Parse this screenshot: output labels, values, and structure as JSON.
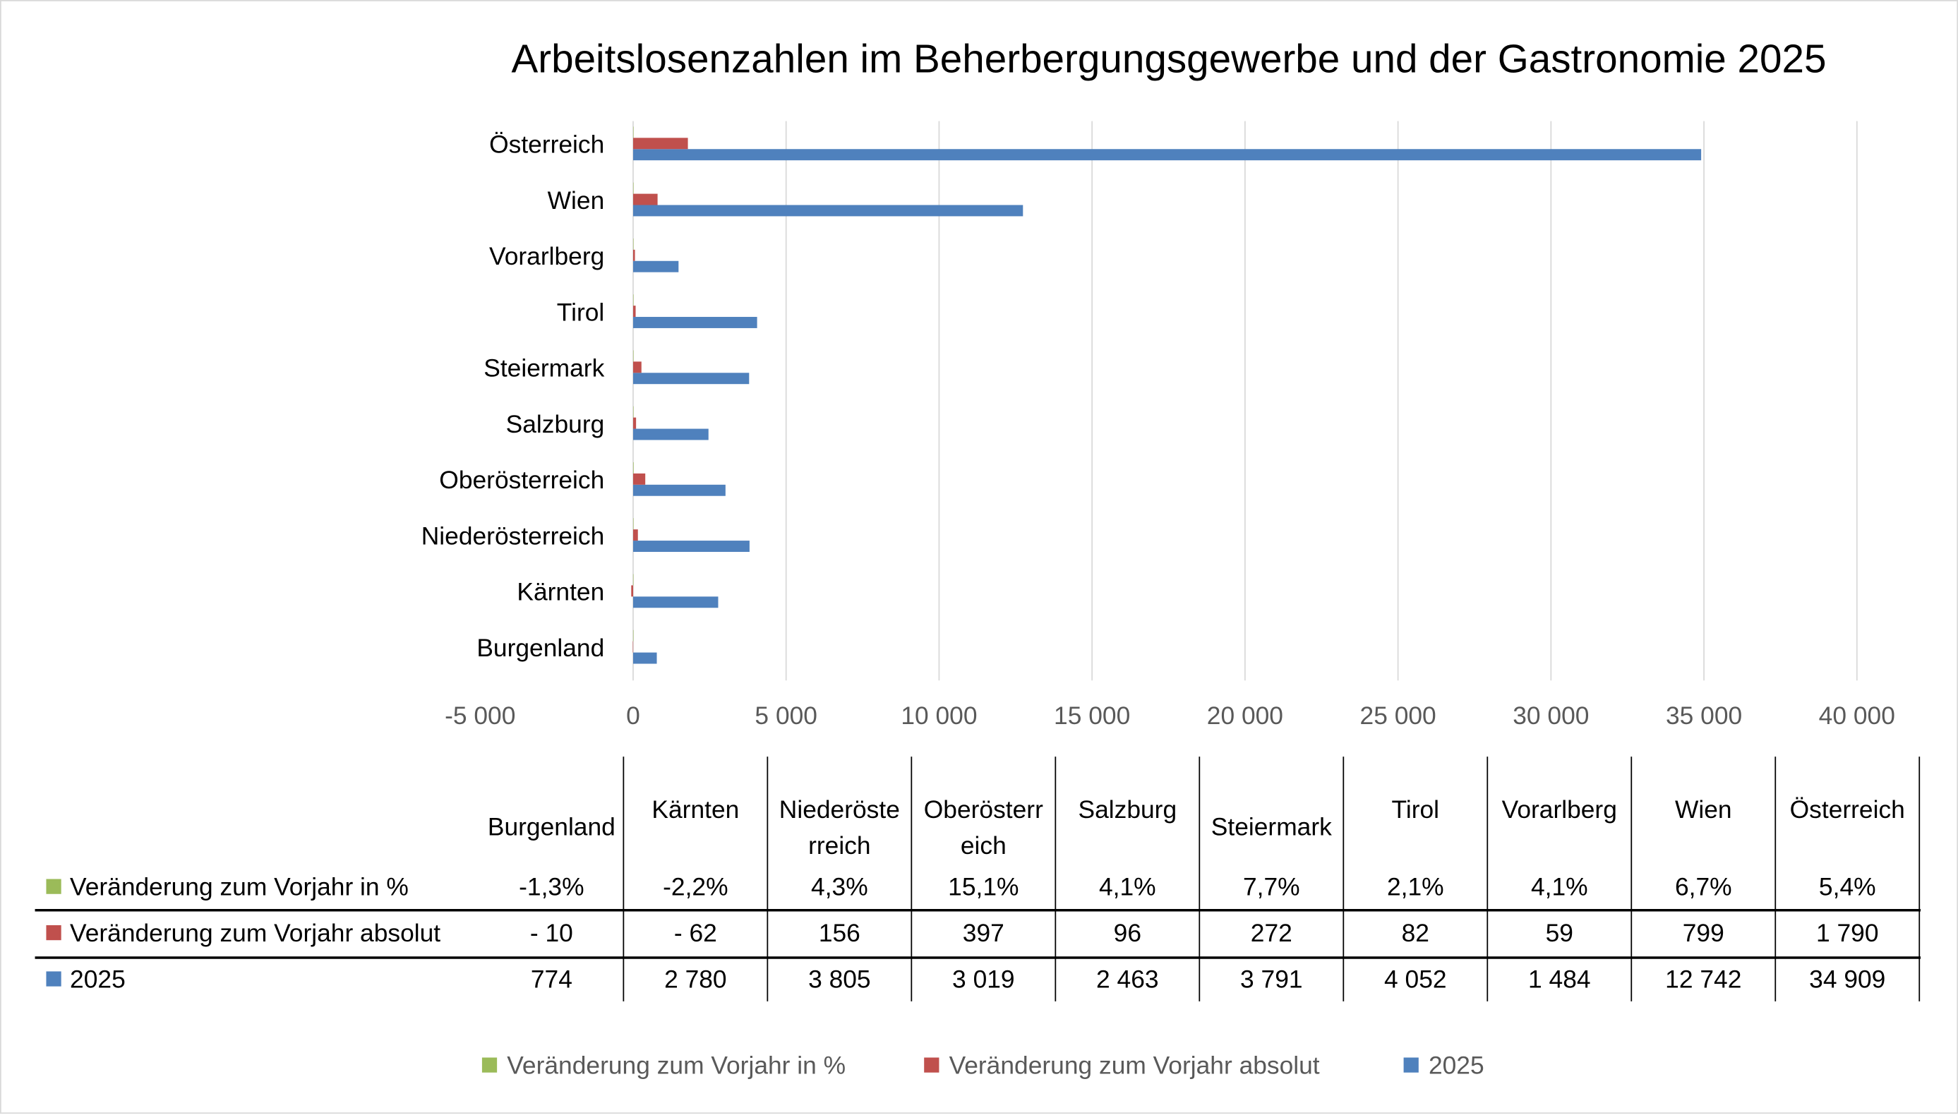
{
  "chart_data": {
    "type": "bar",
    "orientation": "horizontal",
    "title": "Arbeitslosenzahlen im Beherbergungsgewerbe und der Gastronomie 2025",
    "categories": [
      "Burgenland",
      "Kärnten",
      "Niederösterreich",
      "Oberösterreich",
      "Salzburg",
      "Steiermark",
      "Tirol",
      "Vorarlberg",
      "Wien",
      "Österreich"
    ],
    "table_headers": [
      [
        "Burgenland"
      ],
      [
        "Kärnten"
      ],
      [
        "Niederöste",
        "rreich"
      ],
      [
        "Oberösterr",
        "eich"
      ],
      [
        "Salzburg"
      ],
      [
        "Steiermark"
      ],
      [
        "Tirol"
      ],
      [
        "Vorarlberg"
      ],
      [
        "Wien"
      ],
      [
        "Österreich"
      ]
    ],
    "series": [
      {
        "name": "Veränderung zum Vorjahr in %",
        "color": "#9bbb59",
        "values": [
          -1.3,
          -2.2,
          4.3,
          15.1,
          4.1,
          7.7,
          2.1,
          4.1,
          6.7,
          5.4
        ],
        "labels": [
          "-1,3%",
          "-2,2%",
          "4,3%",
          "15,1%",
          "4,1%",
          "7,7%",
          "2,1%",
          "4,1%",
          "6,7%",
          "5,4%"
        ]
      },
      {
        "name": "Veränderung zum Vorjahr absolut",
        "color": "#c0504d",
        "values": [
          -10,
          -62,
          156,
          397,
          96,
          272,
          82,
          59,
          799,
          1790
        ],
        "labels": [
          "- 10",
          "- 62",
          "156",
          "397",
          "96",
          "272",
          "82",
          "59",
          "799",
          "1 790"
        ]
      },
      {
        "name": "2025",
        "color": "#4f81bd",
        "values": [
          774,
          2780,
          3805,
          3019,
          2463,
          3791,
          4052,
          1484,
          12742,
          34909
        ],
        "labels": [
          "774",
          "2 780",
          "3 805",
          "3 019",
          "2 463",
          "3 791",
          "4 052",
          "1 484",
          "12 742",
          "34 909"
        ]
      }
    ],
    "xlim": [
      -5000,
      40000
    ],
    "xticks": [
      -5000,
      0,
      5000,
      10000,
      15000,
      20000,
      25000,
      30000,
      35000,
      40000
    ],
    "xtick_labels": [
      "-5 000",
      "0",
      "5 000",
      "10 000",
      "15 000",
      "20 000",
      "25 000",
      "30 000",
      "35 000",
      "40 000"
    ],
    "grid": true,
    "legend": "bottom",
    "data_table": true
  }
}
